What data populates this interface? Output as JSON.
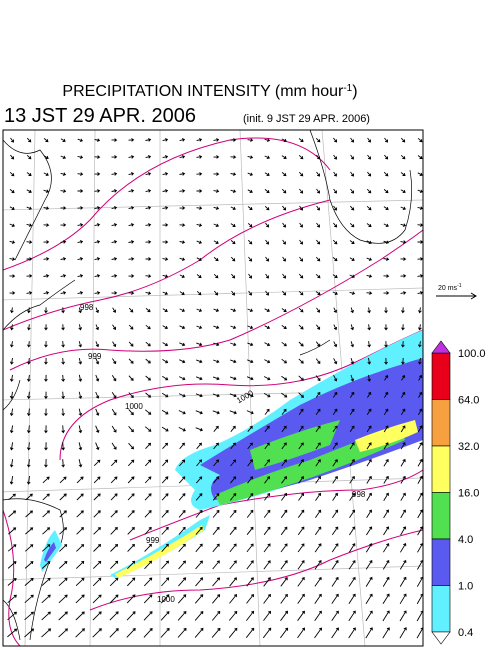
{
  "header": {
    "title": "PRECIPITATION INTENSITY (mm hour",
    "title_exponent": "-1",
    "title_close": ")",
    "valid_time": "13 JST 29 APR. 2006",
    "init_time": "(init. 9 JST 29 APR. 2006)"
  },
  "wind_scale": {
    "label": "20 ms",
    "exponent": "-1"
  },
  "colorbar": {
    "labels": [
      "100.0",
      "64.0",
      "32.0",
      "16.0",
      "4.0",
      "1.0",
      "0.4"
    ],
    "colors": [
      "#e8001a",
      "#f6a040",
      "#ffff60",
      "#50e050",
      "#5a5af0",
      "#60f0ff"
    ],
    "over_color": "#c030e0",
    "under_color": "#ffffff"
  },
  "contour_labels": [
    "998",
    "999",
    "1000",
    "1000",
    "999",
    "998",
    "1000"
  ]
}
